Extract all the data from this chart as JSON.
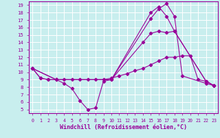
{
  "xlabel": "Windchill (Refroidissement éolien,°C)",
  "bg_color": "#c8eeee",
  "grid_color": "#ffffff",
  "line_color": "#990099",
  "xlim": [
    -0.5,
    23.5
  ],
  "ylim": [
    4.5,
    19.5
  ],
  "xticks": [
    0,
    1,
    2,
    3,
    4,
    5,
    6,
    7,
    8,
    9,
    10,
    11,
    12,
    13,
    14,
    15,
    16,
    17,
    18,
    19,
    20,
    21,
    22,
    23
  ],
  "yticks": [
    5,
    6,
    7,
    8,
    9,
    10,
    11,
    12,
    13,
    14,
    15,
    16,
    17,
    18,
    19
  ],
  "line1_x": [
    0,
    1,
    2,
    3,
    4,
    5,
    6,
    7,
    8,
    9,
    10,
    15,
    16,
    17,
    18,
    19,
    22,
    23
  ],
  "line1_y": [
    10.5,
    9.2,
    9.0,
    9.0,
    8.5,
    7.8,
    6.2,
    5.0,
    5.2,
    8.8,
    9.0,
    17.2,
    18.5,
    19.2,
    17.5,
    9.5,
    8.5,
    8.2
  ],
  "line2_x": [
    0,
    1,
    2,
    3,
    4,
    5,
    6,
    7,
    8,
    9,
    10,
    11,
    12,
    13,
    14,
    15,
    16,
    17,
    18,
    19,
    20,
    21,
    22,
    23
  ],
  "line2_y": [
    10.5,
    9.2,
    9.0,
    9.0,
    9.0,
    9.0,
    9.0,
    9.0,
    9.0,
    9.0,
    9.2,
    9.5,
    9.8,
    10.2,
    10.5,
    11.0,
    11.5,
    12.0,
    12.0,
    12.2,
    12.2,
    9.0,
    8.8,
    8.2
  ],
  "line3_x": [
    0,
    3,
    10,
    15,
    16,
    17,
    18,
    22,
    23
  ],
  "line3_y": [
    10.5,
    9.0,
    9.0,
    18.0,
    18.8,
    17.5,
    15.5,
    8.8,
    8.2
  ],
  "line4_x": [
    0,
    3,
    10,
    14,
    15,
    16,
    17,
    18,
    22,
    23
  ],
  "line4_y": [
    10.5,
    9.0,
    9.0,
    14.0,
    15.2,
    15.5,
    15.3,
    15.5,
    8.8,
    8.2
  ]
}
